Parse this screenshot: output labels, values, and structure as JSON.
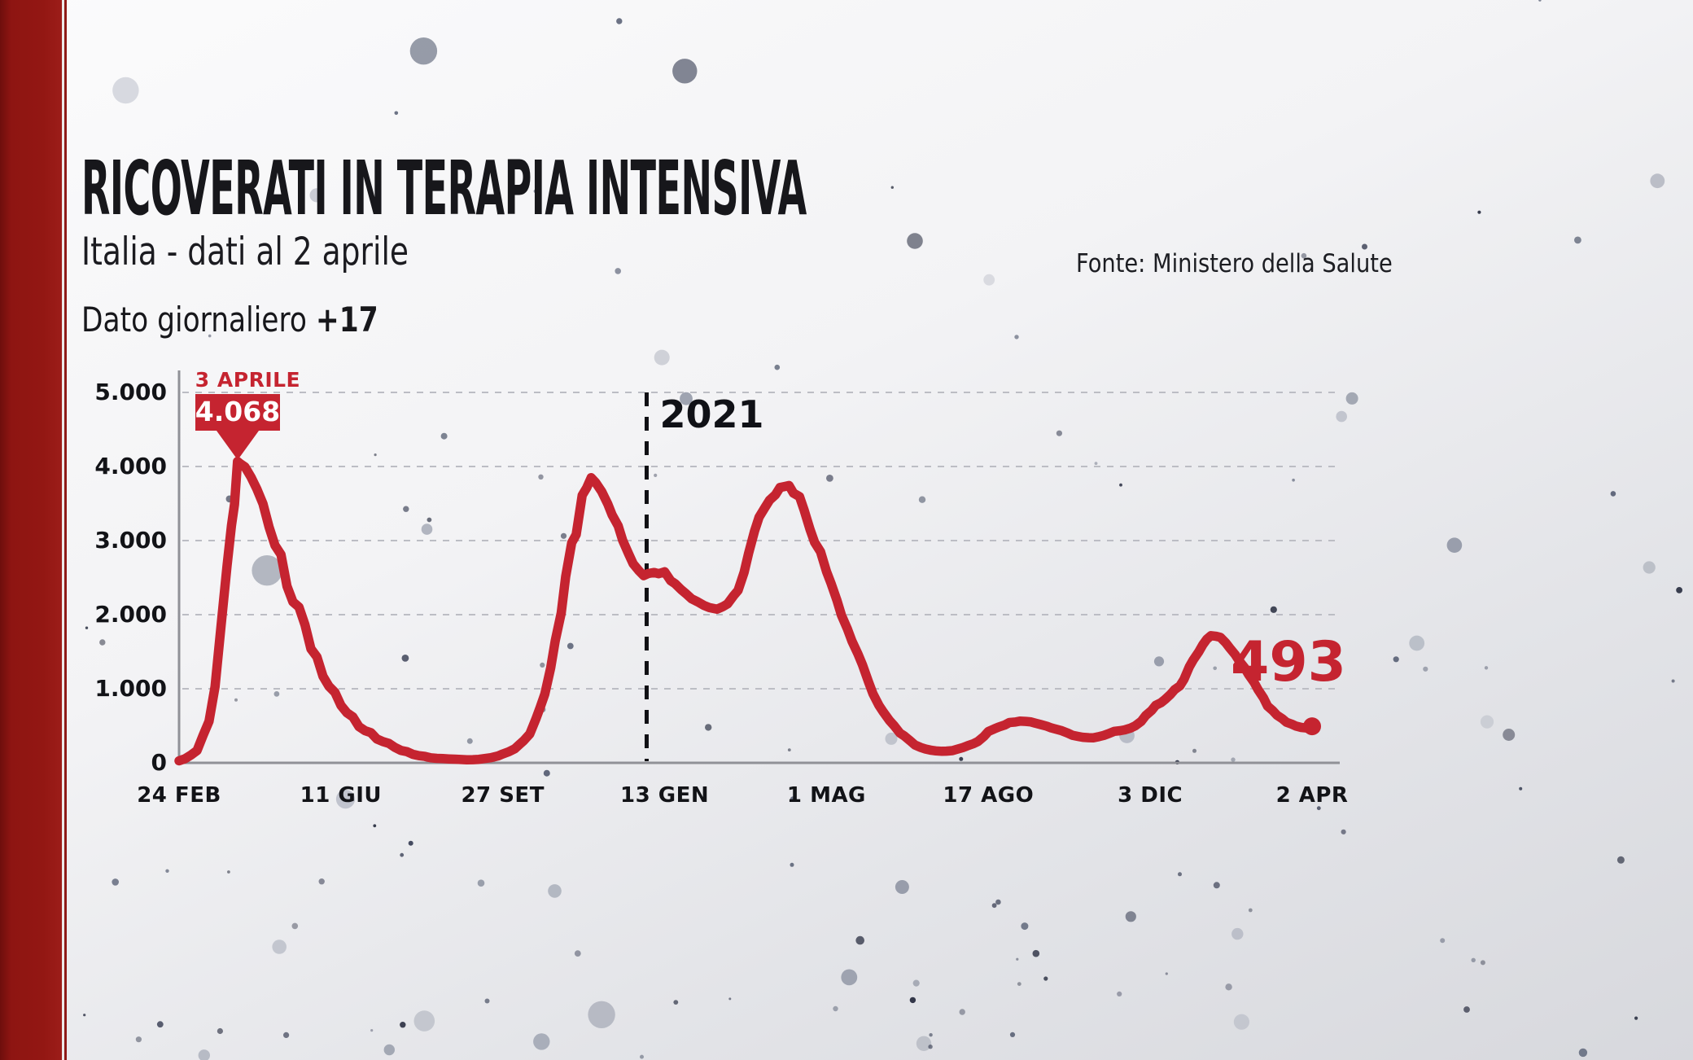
{
  "header": {
    "title": "RICOVERATI IN TERAPIA INTENSIVA",
    "subtitle": "Italia - dati al 2 aprile",
    "daily_label": "Dato giornaliero",
    "daily_value": "+17",
    "source": "Fonte: Ministero della Salute"
  },
  "chart_data": {
    "type": "line",
    "title": "Ricoverati in terapia intensiva - Italia",
    "line_color": "#c52430",
    "accent_red": "#c52430",
    "ylim": [
      0,
      5000
    ],
    "y_ticks": [
      {
        "value": 5000,
        "label": "5.000"
      },
      {
        "value": 4000,
        "label": "4.000"
      },
      {
        "value": 3000,
        "label": "3.000"
      },
      {
        "value": 2000,
        "label": "2.000"
      },
      {
        "value": 1000,
        "label": "1.000"
      },
      {
        "value": 0,
        "label": "0"
      }
    ],
    "x_ticks": [
      {
        "day": 0,
        "label": "24 FEB",
        "bold": false
      },
      {
        "day": 108,
        "label": "11 GIU",
        "bold": false
      },
      {
        "day": 216,
        "label": "27 SET",
        "bold": false
      },
      {
        "day": 324,
        "label": "13 GEN",
        "bold": false
      },
      {
        "day": 432,
        "label": "1 MAG",
        "bold": false
      },
      {
        "day": 540,
        "label": "17 AGO",
        "bold": false
      },
      {
        "day": 648,
        "label": "3 DIC",
        "bold": false
      },
      {
        "day": 768,
        "label": "2 APR",
        "bold": true
      }
    ],
    "x_unit": "days since 24 FEB 2020",
    "grid": "dashed horizontal",
    "annotation": {
      "day": 39,
      "label": "3 APRILE",
      "value": 4068,
      "value_label": "4.068"
    },
    "year_divider": {
      "day": 312,
      "label": "2021"
    },
    "end_point": {
      "day": 768,
      "value": 493,
      "label": "493"
    },
    "series": [
      [
        0,
        27
      ],
      [
        4,
        56
      ],
      [
        8,
        105
      ],
      [
        12,
        166
      ],
      [
        16,
        370
      ],
      [
        20,
        560
      ],
      [
        24,
        1028
      ],
      [
        28,
        1851
      ],
      [
        32,
        2655
      ],
      [
        35,
        3204
      ],
      [
        37,
        3489
      ],
      [
        39,
        4068
      ],
      [
        41,
        4035
      ],
      [
        44,
        3994
      ],
      [
        48,
        3857
      ],
      [
        52,
        3693
      ],
      [
        56,
        3497
      ],
      [
        60,
        3186
      ],
      [
        64,
        2936
      ],
      [
        68,
        2812
      ],
      [
        72,
        2384
      ],
      [
        76,
        2173
      ],
      [
        80,
        2102
      ],
      [
        84,
        1863
      ],
      [
        88,
        1539
      ],
      [
        92,
        1430
      ],
      [
        96,
        1168
      ],
      [
        100,
        1034
      ],
      [
        104,
        952
      ],
      [
        108,
        775
      ],
      [
        112,
        676
      ],
      [
        116,
        620
      ],
      [
        120,
        489
      ],
      [
        124,
        435
      ],
      [
        128,
        408
      ],
      [
        132,
        322
      ],
      [
        136,
        287
      ],
      [
        140,
        263
      ],
      [
        144,
        209
      ],
      [
        148,
        168
      ],
      [
        152,
        152
      ],
      [
        156,
        115
      ],
      [
        160,
        97
      ],
      [
        164,
        87
      ],
      [
        168,
        68
      ],
      [
        172,
        60
      ],
      [
        176,
        57
      ],
      [
        180,
        53
      ],
      [
        184,
        49
      ],
      [
        188,
        45
      ],
      [
        192,
        41
      ],
      [
        196,
        43
      ],
      [
        200,
        47
      ],
      [
        204,
        58
      ],
      [
        208,
        69
      ],
      [
        213,
        94
      ],
      [
        216,
        120
      ],
      [
        220,
        150
      ],
      [
        224,
        190
      ],
      [
        227,
        246
      ],
      [
        230,
        300
      ],
      [
        234,
        390
      ],
      [
        238,
        587
      ],
      [
        241,
        750
      ],
      [
        244,
        926
      ],
      [
        248,
        1284
      ],
      [
        251,
        1651
      ],
      [
        255,
        2022
      ],
      [
        258,
        2515
      ],
      [
        262,
        2971
      ],
      [
        265,
        3081
      ],
      [
        269,
        3612
      ],
      [
        272,
        3712
      ],
      [
        275,
        3848
      ],
      [
        278,
        3782
      ],
      [
        282,
        3663
      ],
      [
        286,
        3497
      ],
      [
        289,
        3345
      ],
      [
        293,
        3199
      ],
      [
        296,
        3003
      ],
      [
        300,
        2819
      ],
      [
        303,
        2687
      ],
      [
        307,
        2589
      ],
      [
        310,
        2528
      ],
      [
        313,
        2555
      ],
      [
        317,
        2569
      ],
      [
        320,
        2553
      ],
      [
        324,
        2579
      ],
      [
        328,
        2459
      ],
      [
        331,
        2418
      ],
      [
        335,
        2339
      ],
      [
        338,
        2288
      ],
      [
        342,
        2214
      ],
      [
        346,
        2174
      ],
      [
        350,
        2128
      ],
      [
        354,
        2094
      ],
      [
        359,
        2074
      ],
      [
        363,
        2110
      ],
      [
        366,
        2146
      ],
      [
        370,
        2256
      ],
      [
        373,
        2327
      ],
      [
        377,
        2571
      ],
      [
        380,
        2827
      ],
      [
        384,
        3127
      ],
      [
        387,
        3317
      ],
      [
        391,
        3448
      ],
      [
        394,
        3546
      ],
      [
        398,
        3620
      ],
      [
        401,
        3716
      ],
      [
        404,
        3730
      ],
      [
        407,
        3743
      ],
      [
        410,
        3640
      ],
      [
        414,
        3593
      ],
      [
        417,
        3417
      ],
      [
        421,
        3151
      ],
      [
        424,
        2979
      ],
      [
        428,
        2849
      ],
      [
        432,
        2583
      ],
      [
        435,
        2423
      ],
      [
        439,
        2192
      ],
      [
        442,
        1992
      ],
      [
        446,
        1805
      ],
      [
        449,
        1643
      ],
      [
        453,
        1469
      ],
      [
        456,
        1323
      ],
      [
        460,
        1095
      ],
      [
        463,
        933
      ],
      [
        467,
        775
      ],
      [
        470,
        684
      ],
      [
        474,
        571
      ],
      [
        477,
        504
      ],
      [
        481,
        401
      ],
      [
        484,
        362
      ],
      [
        488,
        294
      ],
      [
        491,
        241
      ],
      [
        495,
        207
      ],
      [
        498,
        187
      ],
      [
        502,
        169
      ],
      [
        505,
        161
      ],
      [
        509,
        156
      ],
      [
        512,
        158
      ],
      [
        516,
        165
      ],
      [
        519,
        182
      ],
      [
        523,
        207
      ],
      [
        526,
        230
      ],
      [
        530,
        258
      ],
      [
        533,
        288
      ],
      [
        537,
        356
      ],
      [
        540,
        423
      ],
      [
        544,
        459
      ],
      [
        547,
        485
      ],
      [
        551,
        511
      ],
      [
        554,
        544
      ],
      [
        558,
        551
      ],
      [
        561,
        563
      ],
      [
        565,
        559
      ],
      [
        568,
        554
      ],
      [
        572,
        532
      ],
      [
        575,
        516
      ],
      [
        579,
        494
      ],
      [
        582,
        471
      ],
      [
        586,
        449
      ],
      [
        589,
        433
      ],
      [
        593,
        401
      ],
      [
        596,
        373
      ],
      [
        600,
        356
      ],
      [
        603,
        345
      ],
      [
        607,
        340
      ],
      [
        610,
        337
      ],
      [
        614,
        355
      ],
      [
        617,
        370
      ],
      [
        621,
        400
      ],
      [
        624,
        425
      ],
      [
        628,
        434
      ],
      [
        631,
        445
      ],
      [
        635,
        470
      ],
      [
        638,
        499
      ],
      [
        642,
        560
      ],
      [
        645,
        638
      ],
      [
        649,
        707
      ],
      [
        652,
        776
      ],
      [
        656,
        812
      ],
      [
        659,
        856
      ],
      [
        663,
        923
      ],
      [
        666,
        987
      ],
      [
        670,
        1038
      ],
      [
        673,
        1126
      ],
      [
        677,
        1297
      ],
      [
        680,
        1392
      ],
      [
        684,
        1499
      ],
      [
        687,
        1595
      ],
      [
        690,
        1669
      ],
      [
        693,
        1717
      ],
      [
        697,
        1708
      ],
      [
        700,
        1694
      ],
      [
        704,
        1621
      ],
      [
        707,
        1549
      ],
      [
        711,
        1462
      ],
      [
        714,
        1376
      ],
      [
        718,
        1283
      ],
      [
        721,
        1190
      ],
      [
        725,
        1088
      ],
      [
        728,
        987
      ],
      [
        732,
        877
      ],
      [
        735,
        766
      ],
      [
        739,
        702
      ],
      [
        742,
        643
      ],
      [
        746,
        595
      ],
      [
        749,
        548
      ],
      [
        753,
        522
      ],
      [
        756,
        497
      ],
      [
        760,
        478
      ],
      [
        763,
        471
      ],
      [
        766,
        464
      ],
      [
        768,
        493
      ]
    ]
  }
}
